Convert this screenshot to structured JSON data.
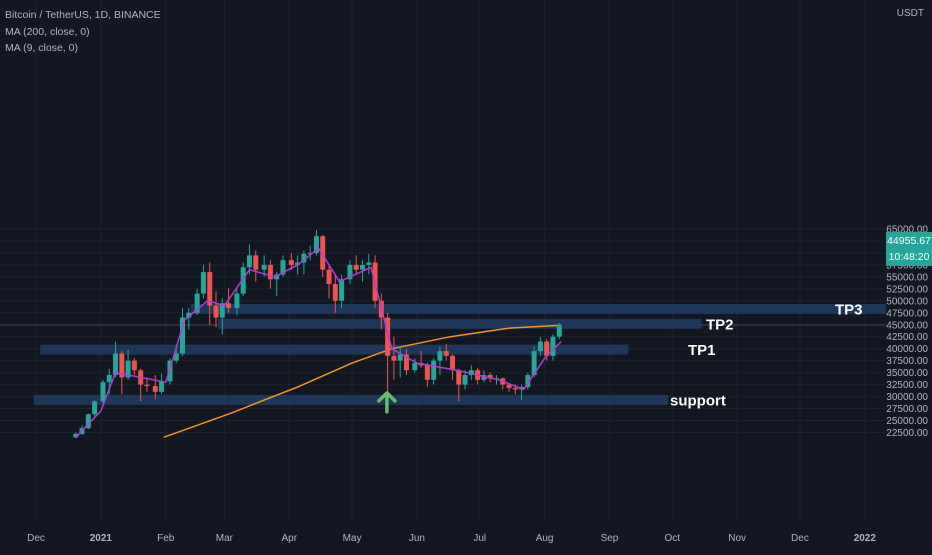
{
  "legend": {
    "symbol": "Bitcoin / TetherUS, 1D, BINANCE",
    "ma200": "MA (200, close, 0)",
    "ma9": "MA (9, close, 0)"
  },
  "price_axis": {
    "currency": "USDT",
    "ticks": [
      "65000.00",
      "62500.00",
      "60000.00",
      "57500.00",
      "55000.00",
      "52500.00",
      "50000.00",
      "47500.00",
      "45000.00",
      "42500.00",
      "40000.00",
      "37500.00",
      "35000.00",
      "32500.00",
      "30000.00",
      "27500.00",
      "25000.00",
      "22500.00"
    ],
    "current_price": "44955.67",
    "countdown": "10:48:20"
  },
  "time_axis": {
    "ticks": [
      "Dec",
      "2021",
      "Feb",
      "Mar",
      "Apr",
      "May",
      "Jun",
      "Jul",
      "Aug",
      "Sep",
      "Oct",
      "Nov",
      "Dec",
      "2022"
    ]
  },
  "colors": {
    "background": "#131722",
    "up": "#26a69a",
    "down": "#ef5350",
    "ma200": "#f7931a",
    "ma9": "#b23dd6",
    "zone": "#1f3a5f",
    "arrow": "#66bb6a"
  },
  "chart_data": {
    "type": "candlestick",
    "title": "Bitcoin / TetherUS, 1D, BINANCE",
    "ylim": [
      21500,
      65500
    ],
    "series": [
      {
        "name": "MA (200, close, 0)",
        "x": [
          "2021-01-31",
          "2021-03-04",
          "2021-04-05",
          "2021-05-01",
          "2021-05-20",
          "2021-06-17",
          "2021-07-15",
          "2021-08-09"
        ],
        "values": [
          21500,
          26500,
          32000,
          37000,
          40000,
          42500,
          44300,
          44900
        ]
      },
      {
        "name": "MA (9, close, 0)",
        "x": [
          "2020-12-20",
          "2021-01-01",
          "2021-01-08",
          "2021-01-20",
          "2021-02-01",
          "2021-02-10",
          "2021-02-21",
          "2021-03-01",
          "2021-03-13",
          "2021-03-25",
          "2021-04-05",
          "2021-04-15",
          "2021-04-25",
          "2021-05-10",
          "2021-05-20",
          "2021-06-01",
          "2021-06-20",
          "2021-07-10",
          "2021-07-22",
          "2021-08-01",
          "2021-08-09"
        ],
        "values": [
          21500,
          27000,
          35000,
          34000,
          33000,
          46000,
          50000,
          49000,
          56500,
          55000,
          57500,
          61000,
          54000,
          57000,
          40000,
          37000,
          35500,
          33500,
          31500,
          38000,
          41500
        ]
      }
    ],
    "levels": [
      {
        "label": "TP3",
        "value": 48300
      },
      {
        "label": "TP2",
        "value": 45200
      },
      {
        "label": "TP1",
        "value": 39800
      },
      {
        "label": "support",
        "value": 29300
      }
    ],
    "candles": [
      {
        "date": "2020-12-20",
        "o": 21500,
        "h": 22500,
        "l": 21300,
        "c": 22200
      },
      {
        "date": "2020-12-23",
        "o": 22200,
        "h": 24000,
        "l": 22000,
        "c": 23400
      },
      {
        "date": "2020-12-26",
        "o": 23400,
        "h": 26500,
        "l": 23200,
        "c": 26300
      },
      {
        "date": "2020-12-29",
        "o": 26300,
        "h": 29200,
        "l": 25800,
        "c": 29000
      },
      {
        "date": "2021-01-02",
        "o": 29000,
        "h": 33500,
        "l": 28700,
        "c": 33000
      },
      {
        "date": "2021-01-05",
        "o": 33000,
        "h": 35800,
        "l": 30500,
        "c": 34500
      },
      {
        "date": "2021-01-08",
        "o": 34500,
        "h": 41500,
        "l": 34000,
        "c": 39000
      },
      {
        "date": "2021-01-11",
        "o": 39000,
        "h": 39600,
        "l": 30500,
        "c": 34000
      },
      {
        "date": "2021-01-14",
        "o": 34000,
        "h": 39800,
        "l": 33500,
        "c": 37500
      },
      {
        "date": "2021-01-17",
        "o": 37500,
        "h": 38000,
        "l": 34500,
        "c": 35500
      },
      {
        "date": "2021-01-20",
        "o": 35500,
        "h": 35800,
        "l": 29000,
        "c": 32500
      },
      {
        "date": "2021-01-23",
        "o": 32500,
        "h": 34000,
        "l": 31000,
        "c": 32200
      },
      {
        "date": "2021-01-27",
        "o": 32200,
        "h": 34500,
        "l": 29500,
        "c": 31000
      },
      {
        "date": "2021-01-30",
        "o": 31000,
        "h": 34800,
        "l": 30500,
        "c": 33200
      },
      {
        "date": "2021-02-03",
        "o": 33200,
        "h": 38000,
        "l": 32500,
        "c": 37500
      },
      {
        "date": "2021-02-06",
        "o": 37500,
        "h": 40500,
        "l": 37000,
        "c": 39000
      },
      {
        "date": "2021-02-09",
        "o": 39000,
        "h": 48500,
        "l": 38500,
        "c": 46500
      },
      {
        "date": "2021-02-12",
        "o": 46500,
        "h": 48500,
        "l": 44000,
        "c": 47500
      },
      {
        "date": "2021-02-16",
        "o": 47500,
        "h": 52500,
        "l": 47000,
        "c": 51500
      },
      {
        "date": "2021-02-19",
        "o": 51500,
        "h": 57500,
        "l": 50500,
        "c": 56000
      },
      {
        "date": "2021-02-22",
        "o": 56000,
        "h": 58000,
        "l": 45000,
        "c": 49000
      },
      {
        "date": "2021-02-25",
        "o": 49000,
        "h": 52000,
        "l": 44500,
        "c": 46500
      },
      {
        "date": "2021-02-28",
        "o": 46500,
        "h": 50500,
        "l": 43000,
        "c": 49500
      },
      {
        "date": "2021-03-03",
        "o": 49500,
        "h": 52600,
        "l": 47500,
        "c": 48500
      },
      {
        "date": "2021-03-07",
        "o": 48500,
        "h": 52500,
        "l": 47000,
        "c": 51500
      },
      {
        "date": "2021-03-10",
        "o": 51500,
        "h": 58000,
        "l": 51000,
        "c": 57000
      },
      {
        "date": "2021-03-13",
        "o": 57000,
        "h": 61800,
        "l": 55500,
        "c": 59500
      },
      {
        "date": "2021-03-16",
        "o": 59500,
        "h": 60500,
        "l": 54000,
        "c": 56500
      },
      {
        "date": "2021-03-20",
        "o": 56500,
        "h": 59500,
        "l": 55000,
        "c": 57500
      },
      {
        "date": "2021-03-23",
        "o": 57500,
        "h": 58500,
        "l": 52500,
        "c": 54500
      },
      {
        "date": "2021-03-26",
        "o": 54500,
        "h": 56000,
        "l": 51000,
        "c": 55500
      },
      {
        "date": "2021-03-29",
        "o": 55500,
        "h": 59500,
        "l": 55000,
        "c": 58500
      },
      {
        "date": "2021-04-02",
        "o": 58500,
        "h": 60000,
        "l": 56500,
        "c": 57500
      },
      {
        "date": "2021-04-05",
        "o": 57500,
        "h": 59500,
        "l": 55500,
        "c": 58000
      },
      {
        "date": "2021-04-08",
        "o": 58000,
        "h": 60500,
        "l": 55500,
        "c": 59800
      },
      {
        "date": "2021-04-11",
        "o": 59800,
        "h": 61500,
        "l": 58500,
        "c": 60000
      },
      {
        "date": "2021-04-14",
        "o": 60000,
        "h": 64800,
        "l": 59500,
        "c": 63500
      },
      {
        "date": "2021-04-17",
        "o": 63500,
        "h": 63800,
        "l": 55000,
        "c": 56500
      },
      {
        "date": "2021-04-20",
        "o": 56500,
        "h": 57500,
        "l": 50500,
        "c": 53500
      },
      {
        "date": "2021-04-23",
        "o": 53500,
        "h": 55500,
        "l": 47500,
        "c": 50000
      },
      {
        "date": "2021-04-26",
        "o": 50000,
        "h": 55500,
        "l": 48500,
        "c": 54500
      },
      {
        "date": "2021-04-30",
        "o": 54500,
        "h": 58500,
        "l": 53500,
        "c": 57500
      },
      {
        "date": "2021-05-03",
        "o": 57500,
        "h": 59500,
        "l": 55500,
        "c": 56500
      },
      {
        "date": "2021-05-06",
        "o": 56500,
        "h": 58500,
        "l": 54000,
        "c": 57500
      },
      {
        "date": "2021-05-09",
        "o": 57500,
        "h": 59800,
        "l": 55500,
        "c": 58000
      },
      {
        "date": "2021-05-12",
        "o": 58000,
        "h": 59500,
        "l": 48500,
        "c": 50000
      },
      {
        "date": "2021-05-15",
        "o": 50000,
        "h": 51500,
        "l": 44000,
        "c": 46500
      },
      {
        "date": "2021-05-18",
        "o": 46500,
        "h": 47500,
        "l": 31000,
        "c": 38500
      },
      {
        "date": "2021-05-21",
        "o": 38500,
        "h": 42500,
        "l": 33500,
        "c": 37500
      },
      {
        "date": "2021-05-24",
        "o": 37500,
        "h": 40500,
        "l": 34000,
        "c": 38800
      },
      {
        "date": "2021-05-27",
        "o": 38800,
        "h": 40000,
        "l": 34500,
        "c": 35500
      },
      {
        "date": "2021-05-31",
        "o": 35500,
        "h": 38000,
        "l": 35000,
        "c": 37000
      },
      {
        "date": "2021-06-03",
        "o": 37000,
        "h": 39500,
        "l": 36000,
        "c": 36500
      },
      {
        "date": "2021-06-06",
        "o": 36500,
        "h": 37000,
        "l": 32000,
        "c": 33500
      },
      {
        "date": "2021-06-09",
        "o": 33500,
        "h": 38000,
        "l": 32500,
        "c": 37500
      },
      {
        "date": "2021-06-12",
        "o": 37500,
        "h": 40500,
        "l": 34500,
        "c": 39500
      },
      {
        "date": "2021-06-15",
        "o": 39500,
        "h": 41000,
        "l": 37500,
        "c": 38500
      },
      {
        "date": "2021-06-18",
        "o": 38500,
        "h": 38800,
        "l": 33500,
        "c": 35500
      },
      {
        "date": "2021-06-21",
        "o": 35500,
        "h": 35800,
        "l": 29000,
        "c": 32500
      },
      {
        "date": "2021-06-24",
        "o": 32500,
        "h": 35500,
        "l": 31500,
        "c": 34500
      },
      {
        "date": "2021-06-27",
        "o": 34500,
        "h": 36500,
        "l": 33500,
        "c": 35500
      },
      {
        "date": "2021-06-30",
        "o": 35500,
        "h": 36000,
        "l": 32500,
        "c": 33500
      },
      {
        "date": "2021-07-03",
        "o": 33500,
        "h": 35500,
        "l": 33000,
        "c": 34500
      },
      {
        "date": "2021-07-06",
        "o": 34500,
        "h": 35000,
        "l": 33000,
        "c": 33800
      },
      {
        "date": "2021-07-09",
        "o": 33800,
        "h": 34500,
        "l": 32500,
        "c": 33800
      },
      {
        "date": "2021-07-12",
        "o": 33800,
        "h": 34000,
        "l": 31500,
        "c": 32500
      },
      {
        "date": "2021-07-15",
        "o": 32500,
        "h": 32800,
        "l": 31000,
        "c": 31800
      },
      {
        "date": "2021-07-18",
        "o": 31800,
        "h": 32500,
        "l": 30500,
        "c": 31500
      },
      {
        "date": "2021-07-21",
        "o": 31500,
        "h": 32500,
        "l": 29300,
        "c": 32000
      },
      {
        "date": "2021-07-24",
        "o": 32000,
        "h": 35000,
        "l": 31500,
        "c": 34500
      },
      {
        "date": "2021-07-27",
        "o": 34500,
        "h": 40500,
        "l": 34000,
        "c": 39500
      },
      {
        "date": "2021-07-30",
        "o": 39500,
        "h": 42500,
        "l": 38500,
        "c": 41500
      },
      {
        "date": "2021-08-02",
        "o": 41500,
        "h": 42000,
        "l": 37500,
        "c": 38500
      },
      {
        "date": "2021-08-05",
        "o": 38500,
        "h": 43000,
        "l": 37500,
        "c": 42500
      },
      {
        "date": "2021-08-08",
        "o": 42500,
        "h": 45300,
        "l": 42000,
        "c": 44955.67
      }
    ]
  }
}
